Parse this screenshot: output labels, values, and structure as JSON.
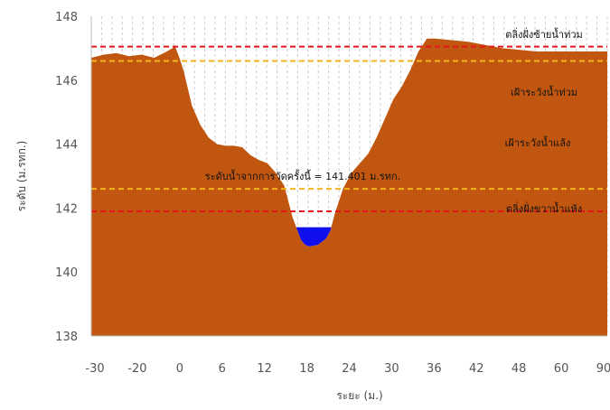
{
  "chart_data": {
    "type": "area",
    "xlabel": "ระยะ (ม.)",
    "ylabel": "ระดับ (ม.รทก.)",
    "xlim": [
      -30,
      93
    ],
    "ylim": [
      138,
      148
    ],
    "x_ticks": [
      "-30",
      "-20",
      "0",
      "6",
      "12",
      "18",
      "24",
      "30",
      "36",
      "42",
      "48",
      "60",
      "90"
    ],
    "x_tick_pos": [
      -30,
      -20,
      0,
      6,
      12,
      18,
      24,
      30,
      36,
      42,
      48,
      60,
      90
    ],
    "y_ticks": [
      138,
      140,
      142,
      144,
      146,
      148
    ],
    "grid": "vertical dashed",
    "ground_profile": {
      "x": [
        -30,
        -27,
        -24,
        -21,
        -18,
        -15,
        -12,
        -10,
        -9,
        -8,
        -6,
        -4,
        -2,
        0,
        2,
        4,
        6,
        8,
        10,
        12,
        14,
        16,
        17,
        18,
        19,
        20,
        21,
        22,
        24,
        26,
        27,
        28,
        30,
        32,
        34,
        36,
        38,
        40,
        42,
        44,
        46,
        48,
        50,
        52,
        56,
        60,
        64,
        68,
        72,
        76,
        80,
        84,
        88,
        93
      ],
      "y": [
        146.7,
        146.8,
        146.85,
        146.75,
        146.8,
        146.7,
        146.9,
        147.05,
        146.7,
        146.3,
        145.2,
        144.6,
        144.2,
        144.0,
        143.95,
        143.95,
        143.9,
        143.65,
        143.5,
        143.4,
        143.1,
        142.7,
        142.2,
        141.7,
        141.35,
        141.0,
        140.85,
        140.8,
        140.85,
        141.05,
        141.3,
        141.8,
        142.6,
        143.1,
        143.4,
        143.7,
        144.2,
        144.8,
        145.4,
        145.8,
        146.3,
        146.9,
        147.3,
        147.3,
        147.25,
        147.2,
        147.1,
        147.0,
        146.95,
        146.9,
        146.9,
        146.9,
        146.9,
        146.9
      ]
    },
    "water_level": 141.4,
    "reference_lines": [
      {
        "y": 147.05,
        "color": "#e8141c",
        "label": "ตลิ่งฝั่งซ้ายน้ำท่วม"
      },
      {
        "y": 146.6,
        "color": "#f2b51d",
        "label": "เฝ้าระวังน้ำท่วม"
      },
      {
        "y": 142.6,
        "color": "#f2b51d",
        "label": ""
      },
      {
        "y": 141.9,
        "color": "#e8141c",
        "label": "ตลิ่งฝั่งขวาน้ำแห้ง"
      }
    ],
    "annotations": [
      {
        "text": "เฝ้าระวังน้ำแล้ง"
      },
      {
        "text": "ระดับน้ำจากการวัดครั้งนี้ = 141.401 ม.รทก."
      }
    ],
    "colors": {
      "ground": "#c0560f",
      "water": "#1010ee",
      "flood_line": "#e8141c",
      "watch_line": "#f2b51d",
      "grid": "#cccccc",
      "axis": "#bbbbbb"
    }
  }
}
